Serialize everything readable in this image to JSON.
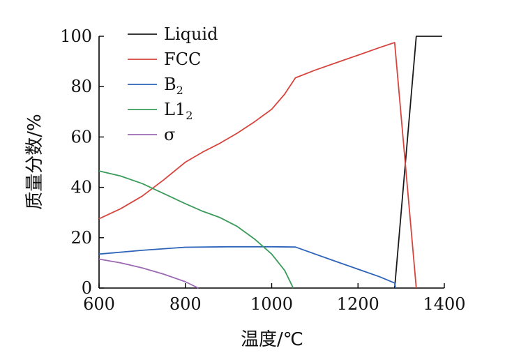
{
  "chart_data": {
    "type": "line",
    "xlabel": "温度/℃",
    "ylabel": "质量分数/%",
    "xlim": [
      600,
      1400
    ],
    "ylim": [
      0,
      100
    ],
    "xticks": [
      600,
      800,
      1000,
      1200,
      1400
    ],
    "yticks": [
      0,
      20,
      40,
      60,
      80,
      100
    ],
    "grid": false,
    "legend_position": "top-left",
    "series": [
      {
        "name": "Liquid",
        "base": "Liquid",
        "sub": "",
        "color": "#1a1a1a",
        "points": [
          [
            1285,
            0
          ],
          [
            1335,
            100
          ],
          [
            1395,
            100
          ]
        ]
      },
      {
        "name": "FCC",
        "base": "FCC",
        "sub": "",
        "color": "#d6453d",
        "points": [
          [
            600,
            27.5
          ],
          [
            650,
            31.5
          ],
          [
            700,
            36.5
          ],
          [
            750,
            43
          ],
          [
            800,
            50
          ],
          [
            840,
            54
          ],
          [
            880,
            57.5
          ],
          [
            920,
            61.5
          ],
          [
            960,
            66
          ],
          [
            1000,
            71
          ],
          [
            1030,
            77
          ],
          [
            1055,
            83.5
          ],
          [
            1100,
            86.5
          ],
          [
            1150,
            89.5
          ],
          [
            1200,
            92.5
          ],
          [
            1250,
            95.5
          ],
          [
            1285,
            97.5
          ],
          [
            1335,
            0
          ]
        ]
      },
      {
        "name": "B2",
        "base": "B",
        "sub": "2",
        "color": "#2d63b8",
        "points": [
          [
            600,
            13.5
          ],
          [
            700,
            15
          ],
          [
            800,
            16.2
          ],
          [
            900,
            16.4
          ],
          [
            1000,
            16.4
          ],
          [
            1055,
            16.3
          ],
          [
            1150,
            10.5
          ],
          [
            1250,
            4.5
          ],
          [
            1285,
            2
          ],
          [
            1287,
            0
          ]
        ]
      },
      {
        "name": "L12",
        "base": "L1",
        "sub": "2",
        "color": "#3a9b5a",
        "points": [
          [
            600,
            46.5
          ],
          [
            650,
            44.5
          ],
          [
            700,
            41.5
          ],
          [
            750,
            37.5
          ],
          [
            800,
            33.5
          ],
          [
            840,
            30.5
          ],
          [
            880,
            28
          ],
          [
            920,
            24.5
          ],
          [
            960,
            19.5
          ],
          [
            1000,
            13.5
          ],
          [
            1030,
            7
          ],
          [
            1050,
            0
          ]
        ]
      },
      {
        "name": "σ",
        "base": "σ",
        "sub": "",
        "color": "#9b6ab3",
        "points": [
          [
            600,
            11.5
          ],
          [
            650,
            10
          ],
          [
            700,
            8
          ],
          [
            750,
            5.5
          ],
          [
            800,
            2.5
          ],
          [
            830,
            0
          ]
        ]
      }
    ]
  }
}
